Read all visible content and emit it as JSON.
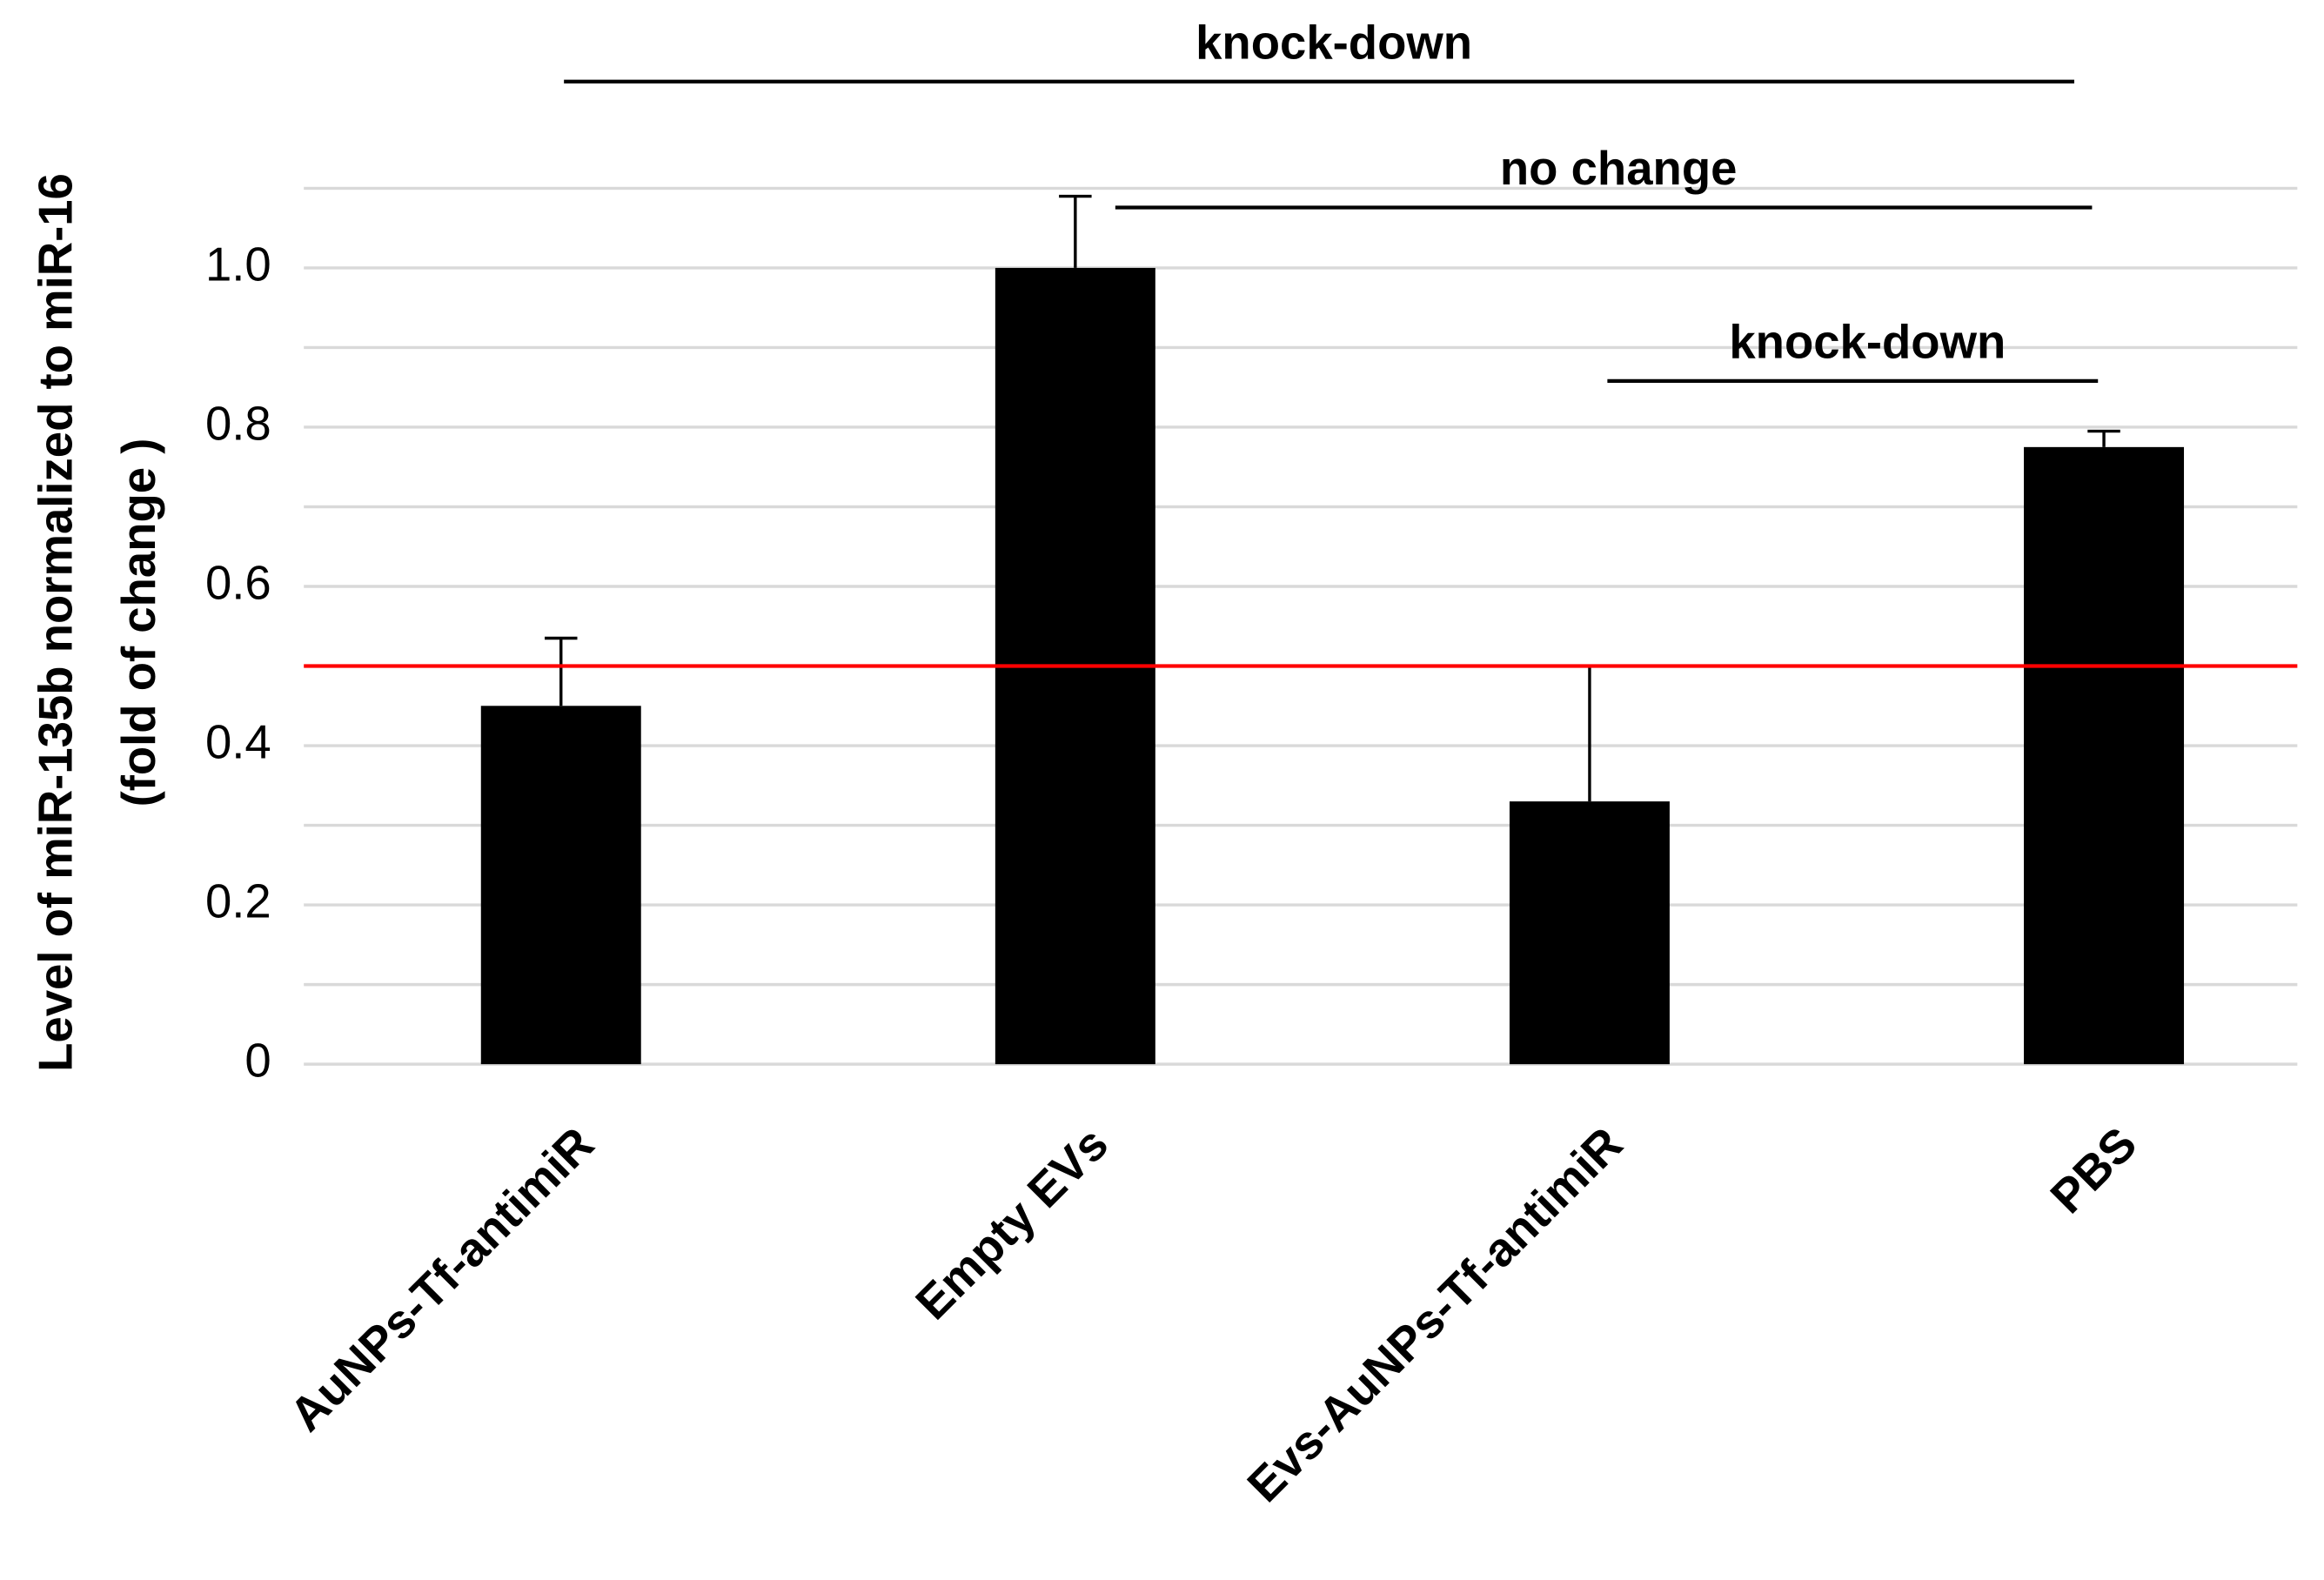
{
  "chart_data": {
    "type": "bar",
    "y_label_lines": [
      "Level of miR-135b normalized to miR-16",
      "(fold of change )"
    ],
    "categories": [
      "AuNPs-Tf-antimiR",
      "Empty EVs",
      "Evs-AuNPs-Tf-antimiR",
      "PBS"
    ],
    "values": [
      0.45,
      1.0,
      0.33,
      0.775
    ],
    "errors": [
      0.085,
      0.09,
      0.17,
      0.02
    ],
    "color": "#000000",
    "ylim": [
      0,
      1.1
    ],
    "yticks": [
      0,
      0.2,
      0.4,
      0.6,
      0.8,
      {
        "value": 1,
        "label": "1.0"
      }
    ],
    "minor_yticks": [
      0.1,
      0.3,
      0.5,
      0.7,
      0.9,
      1.1
    ],
    "grid": true,
    "reference_line": {
      "value": 0.5,
      "color": "#ff0000"
    },
    "annotations": [
      {
        "text": "knock-down",
        "from": 0,
        "to": 3
      },
      {
        "text": "no change",
        "from": 1,
        "to": 3
      },
      {
        "text": "knock-down",
        "from": 2,
        "to": 3
      }
    ]
  }
}
